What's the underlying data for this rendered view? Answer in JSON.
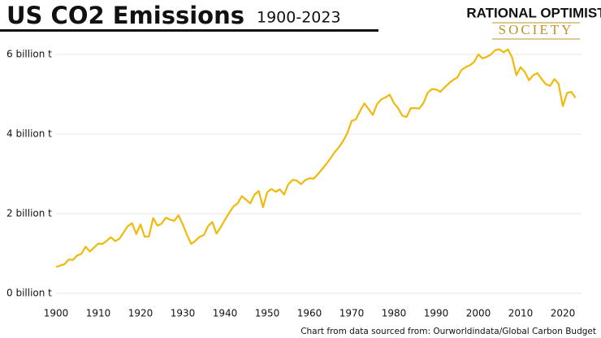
{
  "chart_data": {
    "type": "line",
    "title": "US CO2 Emissions",
    "subtitle": "1900-2023",
    "logo": [
      "RATIONAL OPTIMIST",
      "SOCIETY"
    ],
    "source": "Chart from data sourced from: Ourworldindata/Global Carbon Budget",
    "color": "#f0b90b",
    "grid": true,
    "x": [
      1900,
      1901,
      1902,
      1903,
      1904,
      1905,
      1906,
      1907,
      1908,
      1909,
      1910,
      1911,
      1912,
      1913,
      1914,
      1915,
      1916,
      1917,
      1918,
      1919,
      1920,
      1921,
      1922,
      1923,
      1924,
      1925,
      1926,
      1927,
      1928,
      1929,
      1930,
      1931,
      1932,
      1933,
      1934,
      1935,
      1936,
      1937,
      1938,
      1939,
      1940,
      1941,
      1942,
      1943,
      1944,
      1945,
      1946,
      1947,
      1948,
      1949,
      1950,
      1951,
      1952,
      1953,
      1954,
      1955,
      1956,
      1957,
      1958,
      1959,
      1960,
      1961,
      1962,
      1963,
      1964,
      1965,
      1966,
      1967,
      1968,
      1969,
      1970,
      1971,
      1972,
      1973,
      1974,
      1975,
      1976,
      1977,
      1978,
      1979,
      1980,
      1981,
      1982,
      1983,
      1984,
      1985,
      1986,
      1987,
      1988,
      1989,
      1990,
      1991,
      1992,
      1993,
      1994,
      1995,
      1996,
      1997,
      1998,
      1999,
      2000,
      2001,
      2002,
      2003,
      2004,
      2005,
      2006,
      2007,
      2008,
      2009,
      2010,
      2011,
      2012,
      2013,
      2014,
      2015,
      2016,
      2017,
      2018,
      2019,
      2020,
      2021,
      2022,
      2023
    ],
    "values": [
      0.66,
      0.7,
      0.73,
      0.85,
      0.84,
      0.95,
      0.99,
      1.17,
      1.05,
      1.15,
      1.25,
      1.24,
      1.32,
      1.41,
      1.31,
      1.37,
      1.53,
      1.69,
      1.76,
      1.49,
      1.73,
      1.42,
      1.43,
      1.89,
      1.7,
      1.75,
      1.9,
      1.85,
      1.82,
      1.96,
      1.73,
      1.47,
      1.24,
      1.32,
      1.42,
      1.46,
      1.69,
      1.79,
      1.5,
      1.66,
      1.85,
      2.02,
      2.18,
      2.26,
      2.44,
      2.35,
      2.26,
      2.48,
      2.57,
      2.16,
      2.54,
      2.62,
      2.55,
      2.61,
      2.48,
      2.74,
      2.85,
      2.83,
      2.74,
      2.84,
      2.89,
      2.88,
      2.99,
      3.12,
      3.25,
      3.39,
      3.55,
      3.67,
      3.83,
      4.03,
      4.33,
      4.37,
      4.58,
      4.77,
      4.63,
      4.48,
      4.75,
      4.87,
      4.92,
      4.99,
      4.78,
      4.65,
      4.46,
      4.43,
      4.65,
      4.65,
      4.64,
      4.78,
      5.04,
      5.13,
      5.12,
      5.06,
      5.17,
      5.27,
      5.36,
      5.42,
      5.61,
      5.68,
      5.73,
      5.81,
      6.0,
      5.9,
      5.94,
      6.0,
      6.11,
      6.13,
      6.05,
      6.13,
      5.92,
      5.48,
      5.68,
      5.56,
      5.35,
      5.48,
      5.53,
      5.38,
      5.25,
      5.21,
      5.38,
      5.26,
      4.7,
      5.03,
      5.06,
      4.91
    ],
    "xlim": [
      1900,
      2023
    ],
    "xticks": [
      1900,
      1910,
      1920,
      1930,
      1940,
      1950,
      1960,
      1970,
      1980,
      1990,
      2000,
      2010,
      2020
    ],
    "ylim": [
      0,
      6.5
    ],
    "yticks": [
      {
        "value": 0,
        "label": "0 billion t"
      },
      {
        "value": 2,
        "label": "2 billion t"
      },
      {
        "value": 4,
        "label": "4 billion t"
      },
      {
        "value": 6,
        "label": "6 billion t"
      }
    ]
  }
}
